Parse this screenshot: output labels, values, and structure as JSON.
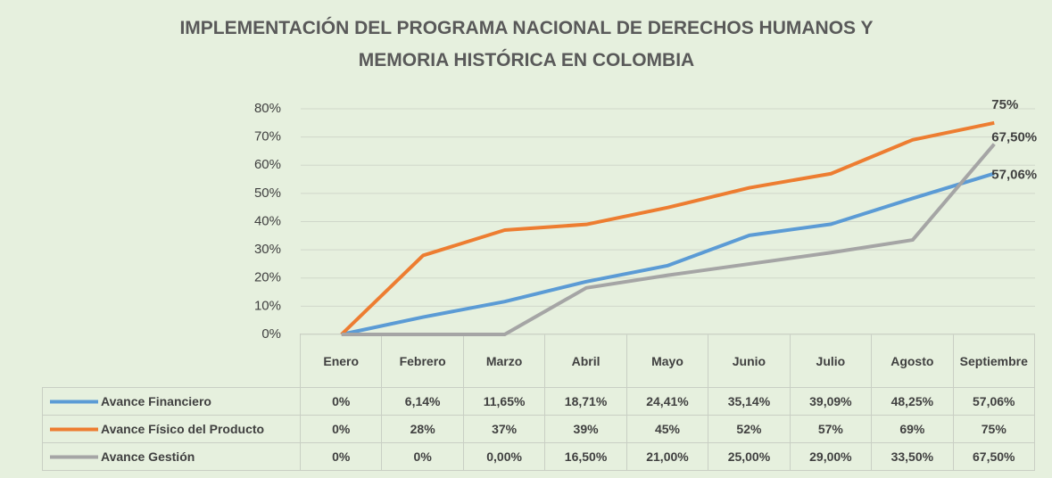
{
  "chart_data": {
    "type": "line",
    "title": "IMPLEMENTACIÓN DEL PROGRAMA NACIONAL DE DERECHOS HUMANOS Y MEMORIA HISTÓRICA EN COLOMBIA",
    "categories": [
      "Enero",
      "Febrero",
      "Marzo",
      "Abril",
      "Mayo",
      "Junio",
      "Julio",
      "Agosto",
      "Septiembre"
    ],
    "series": [
      {
        "name": "Avance Financiero",
        "color": "#5b9bd5",
        "values": [
          0,
          6.14,
          11.65,
          18.71,
          24.41,
          35.14,
          39.09,
          48.25,
          57.06
        ],
        "value_labels": [
          "0%",
          "6,14%",
          "11,65%",
          "18,71%",
          "24,41%",
          "35,14%",
          "39,09%",
          "48,25%",
          "57,06%"
        ]
      },
      {
        "name": "Avance Físico del Producto",
        "color": "#ed7d31",
        "values": [
          0,
          28,
          37,
          39,
          45,
          52,
          57,
          69,
          75
        ],
        "value_labels": [
          "0%",
          "28%",
          "37%",
          "39%",
          "45%",
          "52%",
          "57%",
          "69%",
          "75%"
        ]
      },
      {
        "name": "Avance Gestión",
        "color": "#a5a5a5",
        "values": [
          0,
          0,
          0,
          16.5,
          21,
          25,
          29,
          33.5,
          67.5
        ],
        "value_labels": [
          "0%",
          "0%",
          "0,00%",
          "16,50%",
          "21,00%",
          "25,00%",
          "29,00%",
          "33,50%",
          "67,50%"
        ]
      }
    ],
    "ylim": [
      0,
      80
    ],
    "yticks": [
      {
        "value": 0,
        "label": "0%"
      },
      {
        "value": 10,
        "label": "10%"
      },
      {
        "value": 20,
        "label": "20%"
      },
      {
        "value": 30,
        "label": "30%"
      },
      {
        "value": 40,
        "label": "40%"
      },
      {
        "value": 50,
        "label": "50%"
      },
      {
        "value": 60,
        "label": "60%"
      },
      {
        "value": 70,
        "label": "70%"
      },
      {
        "value": 80,
        "label": "80%"
      }
    ],
    "grid": true
  }
}
